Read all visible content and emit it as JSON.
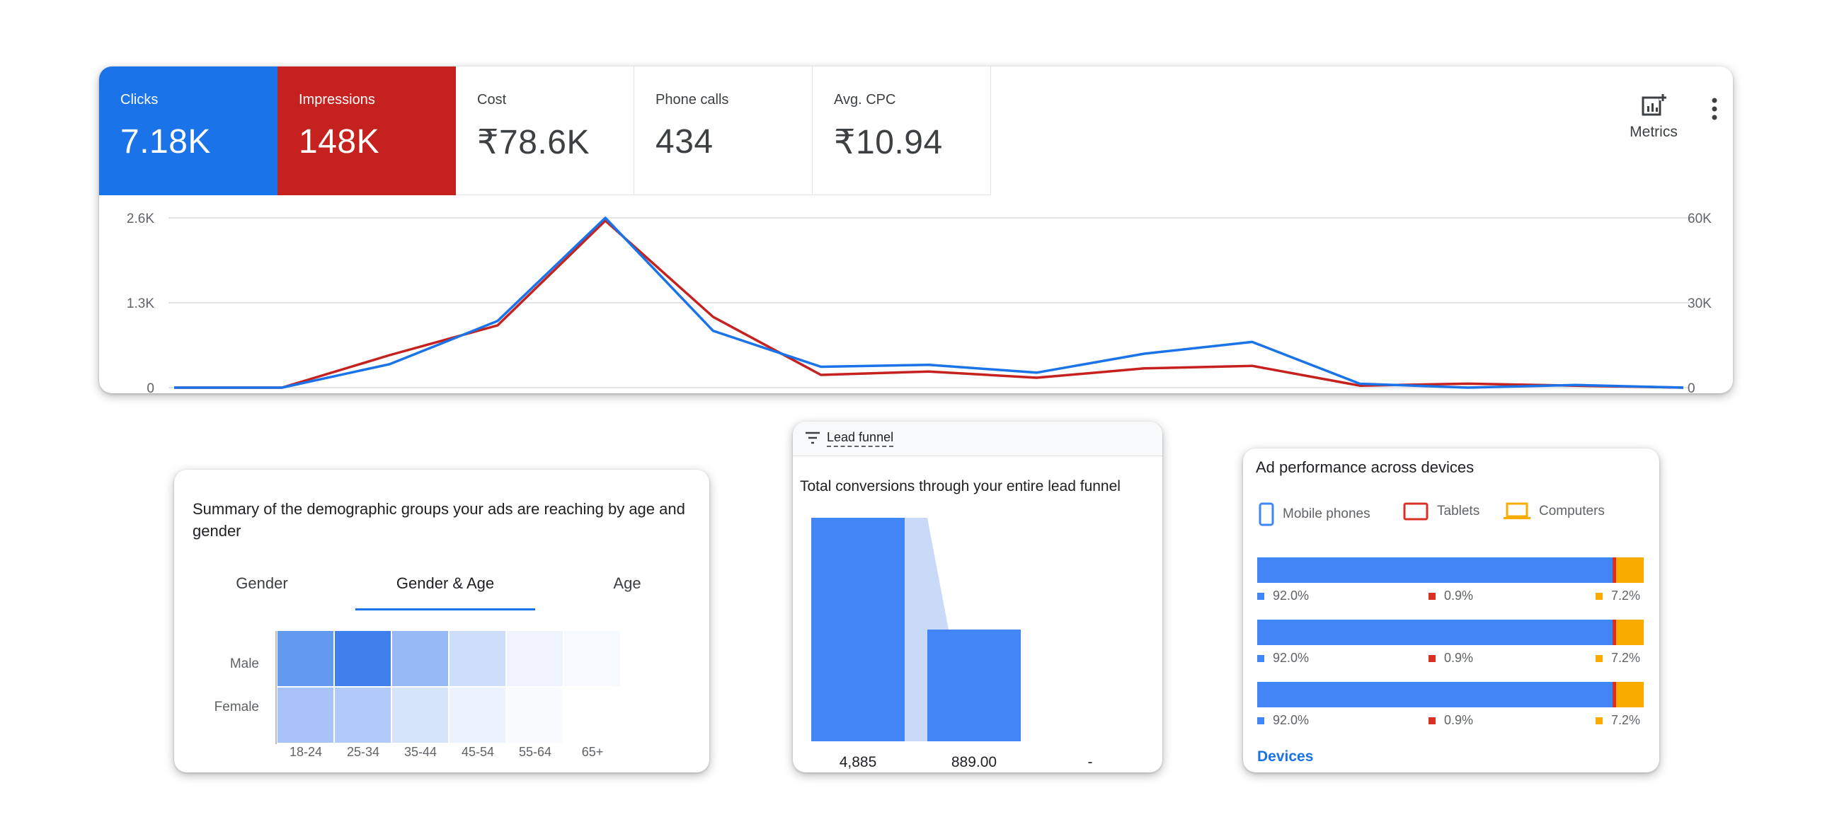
{
  "performance": {
    "tiles": [
      {
        "label": "Clicks",
        "value": "7.18K",
        "color": "#1a73e8"
      },
      {
        "label": "Impressions",
        "value": "148K",
        "color": "#c5221f"
      },
      {
        "label": "Cost",
        "value": "₹78.6K"
      },
      {
        "label": "Phone calls",
        "value": "434"
      },
      {
        "label": "Avg. CPC",
        "value": "₹10.94"
      }
    ],
    "metrics_button": {
      "label": "Metrics",
      "icon": "add-chart-icon"
    },
    "more_button_icon": "more-vert-icon"
  },
  "chart_data": {
    "type": "line",
    "title": "",
    "y_left": {
      "ticks": [
        "0",
        "1.3K",
        "2.6K"
      ],
      "range": [
        0,
        2600
      ]
    },
    "y_right": {
      "ticks": [
        "0",
        "30K",
        "60K"
      ],
      "range": [
        0,
        60000
      ]
    },
    "grid": true,
    "series": [
      {
        "name": "Clicks",
        "axis": "left",
        "color": "#1a73e8",
        "values": [
          0,
          0,
          360,
          1020,
          2600,
          870,
          320,
          350,
          230,
          520,
          700,
          60,
          0,
          40,
          0
        ]
      },
      {
        "name": "Impressions",
        "axis": "right",
        "color": "#c5221f",
        "values": [
          0,
          0,
          11500,
          22000,
          59000,
          25000,
          4500,
          5700,
          3500,
          6800,
          7700,
          700,
          1400,
          700,
          0
        ]
      }
    ]
  },
  "demographics": {
    "title": "Summary of the demographic groups your ads are reaching by age and gender",
    "tabs": [
      "Gender",
      "Gender & Age",
      "Age"
    ],
    "active_tab": "Gender & Age",
    "rows": [
      "Male",
      "Female"
    ],
    "columns": [
      "18-24",
      "25-34",
      "35-44",
      "45-54",
      "55-64",
      "65+"
    ],
    "cell_colors": [
      [
        "#6399ef",
        "#3f80ec",
        "#96b8f5",
        "#cddefb",
        "#eef3fe",
        "#f6f9ff"
      ],
      [
        "#a7c3f7",
        "#b1caf8",
        "#d5e3fb",
        "#ecf2fe",
        "#f9fbff",
        "#ffffff"
      ]
    ]
  },
  "funnel": {
    "tab_label": "Lead funnel",
    "title": "Total conversions through your entire lead funnel",
    "bar_color": "#4285f4",
    "stages": [
      {
        "value_label": "4,885",
        "value": 4885
      },
      {
        "value_label": "889.00",
        "value": 889
      },
      {
        "value_label": "-",
        "value": 0
      }
    ]
  },
  "devices": {
    "title": "Ad performance across devices",
    "legend": [
      {
        "label": "Mobile phones",
        "color": "#4285f4",
        "icon": "mobile-phone-icon"
      },
      {
        "label": "Tablets",
        "color": "#d93025",
        "icon": "tablet-icon"
      },
      {
        "label": "Computers",
        "color": "#f9ab00",
        "icon": "computer-icon"
      }
    ],
    "rows": [
      {
        "mobile": 92.0,
        "tablet": 0.9,
        "computer": 7.2,
        "labels": [
          "92.0%",
          "0.9%",
          "7.2%"
        ]
      },
      {
        "mobile": 92.0,
        "tablet": 0.9,
        "computer": 7.2,
        "labels": [
          "92.0%",
          "0.9%",
          "7.2%"
        ]
      },
      {
        "mobile": 92.0,
        "tablet": 0.9,
        "computer": 7.2,
        "labels": [
          "92.0%",
          "0.9%",
          "7.2%"
        ]
      }
    ],
    "link_label": "Devices"
  }
}
